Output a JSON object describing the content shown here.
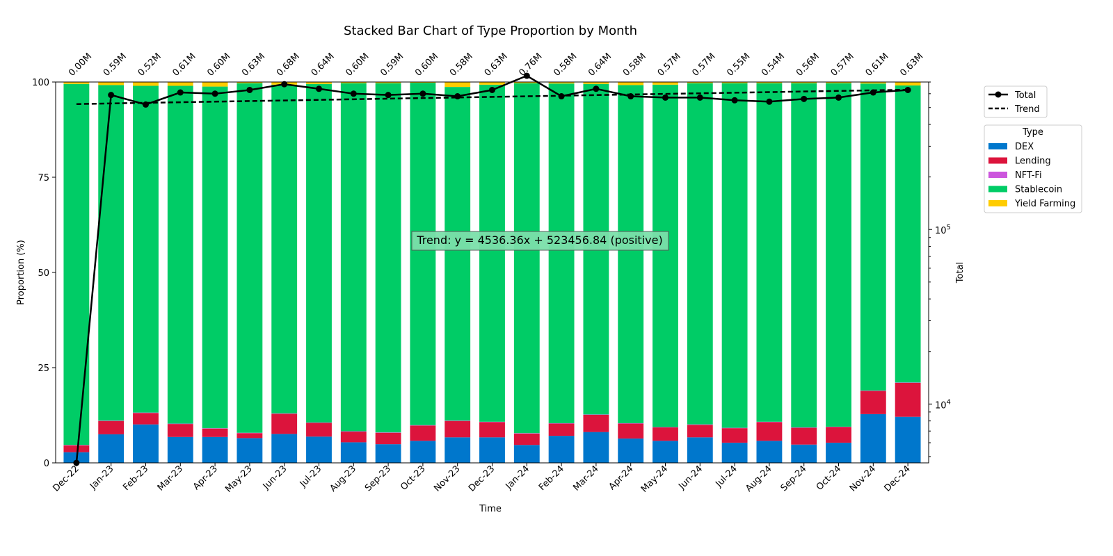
{
  "chart_data": {
    "type": "bar",
    "stacked": true,
    "title": "Stacked Bar Chart of Type Proportion by Month",
    "xlabel": "Time",
    "ylabel": "Proportion (%)",
    "y2label": "Total",
    "ylim": [
      0,
      100
    ],
    "y2lim": [
      4600,
      700000
    ],
    "y2scale": "log",
    "yticks": [
      "0",
      "25",
      "50",
      "75",
      "100"
    ],
    "y2ticks": [
      {
        "value": 10000,
        "base": "10",
        "exp": "4"
      },
      {
        "value": 100000,
        "base": "10",
        "exp": "5"
      }
    ],
    "categories": [
      "Dec-22",
      "Jan-23",
      "Feb-23",
      "Mar-23",
      "Apr-23",
      "May-23",
      "Jun-23",
      "Jul-23",
      "Aug-23",
      "Sep-23",
      "Oct-23",
      "Nov-23",
      "Dec-23",
      "Jan-24",
      "Feb-24",
      "Mar-24",
      "Apr-24",
      "May-24",
      "Jun-24",
      "Jul-24",
      "Aug-24",
      "Sep-24",
      "Oct-24",
      "Nov-24",
      "Dec-24"
    ],
    "series": [
      {
        "name": "DEX",
        "color": "#0077cc",
        "values": [
          2.8,
          7.5,
          10.1,
          6.8,
          6.8,
          6.5,
          7.6,
          6.9,
          5.4,
          4.9,
          5.8,
          6.7,
          6.7,
          4.7,
          7.1,
          8.1,
          6.4,
          5.8,
          6.7,
          5.3,
          5.8,
          4.8,
          5.3,
          12.8,
          12.1
        ]
      },
      {
        "name": "Lending",
        "color": "#dc143c",
        "values": [
          1.8,
          3.5,
          3.0,
          3.4,
          2.2,
          1.3,
          5.3,
          3.6,
          2.8,
          3.0,
          4.0,
          4.3,
          4.0,
          3.0,
          3.2,
          4.5,
          3.9,
          3.5,
          3.3,
          3.8,
          4.9,
          4.4,
          4.1,
          6.1,
          8.9
        ]
      },
      {
        "name": "NFT-Fi",
        "color": "#cc55dd",
        "values": [
          0.1,
          0.1,
          0.1,
          0.1,
          0.1,
          0.1,
          0.1,
          0.1,
          0.1,
          0.1,
          0.1,
          0.1,
          0.1,
          0.1,
          0.1,
          0.1,
          0.1,
          0.1,
          0.1,
          0.1,
          0.1,
          0.1,
          0.1,
          0.1,
          0.1
        ]
      },
      {
        "name": "Stablecoin",
        "color": "#00cc66",
        "values": [
          94.8,
          88.1,
          85.8,
          88.7,
          89.7,
          91.8,
          86.3,
          88.9,
          91.4,
          91.7,
          89.9,
          87.6,
          88.5,
          91.9,
          89.2,
          86.8,
          88.8,
          89.9,
          89.6,
          90.5,
          88.9,
          90.4,
          90.2,
          80.6,
          78.0
        ]
      },
      {
        "name": "Yield Farming",
        "color": "#ffcc00",
        "values": [
          0.5,
          0.8,
          1.0,
          1.0,
          1.2,
          0.3,
          0.7,
          0.5,
          0.3,
          0.3,
          0.2,
          1.3,
          0.7,
          0.3,
          0.4,
          0.5,
          0.8,
          0.7,
          0.3,
          0.3,
          0.3,
          0.3,
          0.3,
          0.4,
          0.9
        ]
      }
    ],
    "total": {
      "name": "Total",
      "values": [
        4600,
        590000,
        520000,
        610000,
        600000,
        630000,
        680000,
        640000,
        600000,
        590000,
        600000,
        580000,
        630000,
        760000,
        580000,
        640000,
        580000,
        570000,
        570000,
        550000,
        540000,
        560000,
        570000,
        610000,
        630000
      ],
      "labels": [
        "0.00M",
        "0.59M",
        "0.52M",
        "0.61M",
        "0.60M",
        "0.63M",
        "0.68M",
        "0.64M",
        "0.60M",
        "0.59M",
        "0.60M",
        "0.58M",
        "0.63M",
        "0.76M",
        "0.58M",
        "0.64M",
        "0.58M",
        "0.57M",
        "0.57M",
        "0.55M",
        "0.54M",
        "0.56M",
        "0.57M",
        "0.61M",
        "0.63M"
      ]
    },
    "trend": {
      "name": "Trend",
      "slope": 4536.36,
      "intercept": 523456.84,
      "annotation": "Trend: y = 4536.36x + 523456.84 (positive)"
    },
    "legend": {
      "title": "Type",
      "placement": "outside-right"
    },
    "colors": {
      "line": "#000000",
      "annotation_bg": "#7be0aa"
    }
  }
}
